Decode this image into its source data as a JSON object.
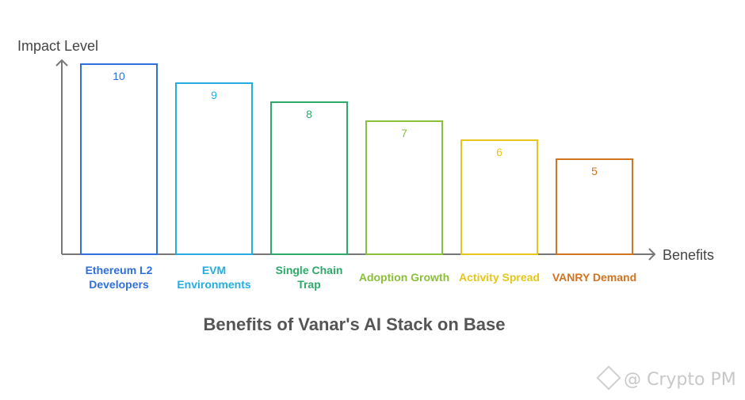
{
  "chart_data": {
    "type": "bar",
    "title": "Benefits of Vanar's AI Stack on Base",
    "xlabel": "Benefits",
    "ylabel": "Impact Level",
    "categories": [
      [
        "Ethereum L2",
        "Developers"
      ],
      [
        "EVM",
        "Environments"
      ],
      [
        "Single Chain",
        "Trap"
      ],
      [
        "Adoption Growth"
      ],
      [
        "Activity Spread"
      ],
      [
        "VANRY Demand"
      ]
    ],
    "values": [
      10,
      9,
      8,
      7,
      6,
      5
    ],
    "colors": [
      "#2f6fde",
      "#24aee0",
      "#2daa6a",
      "#8bbf3a",
      "#e6c619",
      "#d2731f"
    ],
    "ylim": [
      0,
      10
    ],
    "grid": false
  },
  "watermark": "@ Crypto PM"
}
